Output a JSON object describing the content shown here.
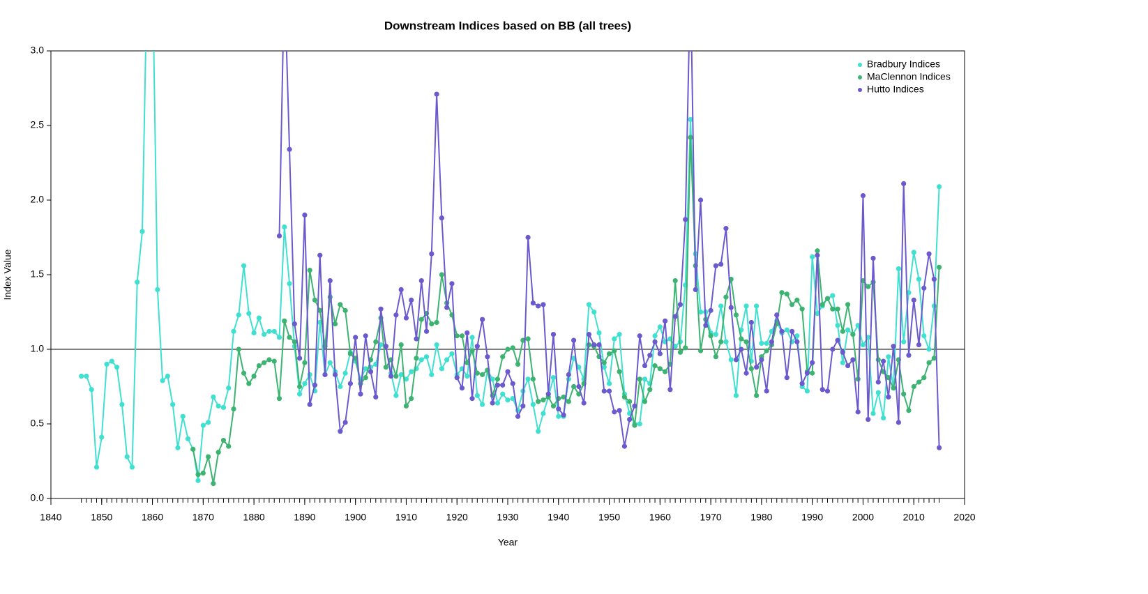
{
  "chart_data": {
    "type": "line",
    "title": "Downstream Indices based on BB (all trees)",
    "x_label": "Year",
    "y_label": "Index Value",
    "x": [
      1846,
      1847,
      1848,
      1849,
      1850,
      1851,
      1852,
      1853,
      1854,
      1855,
      1856,
      1857,
      1858,
      1859,
      1860,
      1861,
      1862,
      1863,
      1864,
      1865,
      1866,
      1867,
      1868,
      1869,
      1870,
      1871,
      1872,
      1873,
      1874,
      1875,
      1876,
      1877,
      1878,
      1879,
      1880,
      1881,
      1882,
      1883,
      1884,
      1885,
      1886,
      1887,
      1888,
      1889,
      1890,
      1891,
      1892,
      1893,
      1894,
      1895,
      1896,
      1897,
      1898,
      1899,
      1900,
      1901,
      1902,
      1903,
      1904,
      1905,
      1906,
      1907,
      1908,
      1909,
      1910,
      1911,
      1912,
      1913,
      1914,
      1915,
      1916,
      1917,
      1918,
      1919,
      1920,
      1921,
      1922,
      1923,
      1924,
      1925,
      1926,
      1927,
      1928,
      1929,
      1930,
      1931,
      1932,
      1933,
      1934,
      1935,
      1936,
      1937,
      1938,
      1939,
      1940,
      1941,
      1942,
      1943,
      1944,
      1945,
      1946,
      1947,
      1948,
      1949,
      1950,
      1951,
      1952,
      1953,
      1954,
      1955,
      1956,
      1957,
      1958,
      1959,
      1960,
      1961,
      1962,
      1963,
      1964,
      1965,
      1966,
      1967,
      1968,
      1969,
      1970,
      1971,
      1972,
      1973,
      1974,
      1975,
      1976,
      1977,
      1978,
      1979,
      1980,
      1981,
      1982,
      1983,
      1984,
      1985,
      1986,
      1987,
      1988,
      1989,
      1990,
      1991,
      1992,
      1993,
      1994,
      1995,
      1996,
      1997,
      1998,
      1999,
      2000,
      2001,
      2002,
      2003,
      2004,
      2005,
      2006,
      2007,
      2008,
      2009,
      2010,
      2011,
      2012,
      2013,
      2014,
      2015
    ],
    "series": [
      {
        "name": "Bradbury Indices",
        "color": "#40e0d0",
        "values": [
          0.82,
          0.82,
          0.73,
          0.21,
          0.41,
          0.9,
          0.92,
          0.88,
          0.63,
          0.28,
          0.21,
          1.45,
          1.79,
          3.6,
          3.6,
          1.4,
          0.79,
          0.82,
          0.63,
          0.34,
          0.55,
          0.4,
          0.33,
          0.12,
          0.49,
          0.51,
          0.68,
          0.62,
          0.61,
          0.74,
          1.12,
          1.23,
          1.56,
          1.24,
          1.11,
          1.21,
          1.1,
          1.12,
          1.12,
          1.08,
          1.82,
          1.44,
          1.02,
          0.7,
          0.77,
          0.83,
          0.72,
          1.18,
          0.83,
          0.91,
          0.85,
          0.75,
          0.84,
          0.98,
          0.92,
          0.8,
          0.87,
          0.88,
          0.9,
          1.03,
          1.02,
          0.84,
          0.69,
          0.83,
          0.8,
          0.85,
          0.87,
          0.93,
          0.95,
          0.83,
          1.03,
          0.87,
          0.93,
          0.97,
          0.83,
          0.87,
          0.82,
          1.08,
          0.69,
          0.63,
          0.86,
          0.8,
          0.64,
          0.7,
          0.66,
          0.67,
          0.59,
          0.72,
          0.8,
          0.63,
          0.45,
          0.57,
          0.68,
          0.81,
          0.55,
          0.55,
          0.8,
          0.94,
          0.88,
          0.8,
          1.3,
          1.25,
          1.11,
          0.88,
          0.77,
          1.07,
          1.1,
          0.7,
          0.57,
          0.5,
          0.5,
          0.8,
          0.77,
          1.09,
          1.15,
          1.05,
          1.07,
          1.02,
          1.05,
          1.43,
          2.54,
          1.64,
          1.25,
          1.25,
          1.11,
          1.1,
          1.29,
          1.05,
          0.93,
          0.69,
          1.13,
          1.29,
          0.92,
          1.29,
          1.04,
          1.04,
          1.12,
          1.19,
          1.11,
          1.13,
          1.05,
          1.09,
          0.75,
          0.72,
          1.62,
          1.24,
          1.29,
          1.34,
          1.36,
          1.16,
          0.91,
          1.13,
          1.1,
          1.16,
          1.03,
          1.08,
          0.57,
          0.71,
          0.54,
          0.95,
          0.74,
          1.54,
          1.05,
          1.38,
          1.65,
          1.47,
          1.09,
          1.0,
          1.29,
          2.09
        ]
      },
      {
        "name": "MaClennon Indices",
        "color": "#3cb371",
        "values": [
          null,
          null,
          null,
          null,
          null,
          null,
          null,
          null,
          null,
          null,
          null,
          null,
          null,
          null,
          null,
          null,
          null,
          null,
          null,
          null,
          null,
          null,
          0.33,
          0.16,
          0.17,
          0.28,
          0.1,
          0.31,
          0.39,
          0.35,
          0.6,
          1.0,
          0.84,
          0.77,
          0.82,
          0.89,
          0.91,
          0.93,
          0.92,
          0.67,
          1.19,
          1.08,
          1.05,
          0.75,
          0.91,
          1.53,
          1.33,
          1.26,
          1.02,
          1.35,
          1.17,
          1.3,
          1.26,
          0.97,
          0.94,
          0.77,
          0.81,
          0.93,
          1.05,
          1.21,
          0.88,
          0.93,
          0.82,
          1.03,
          0.62,
          0.67,
          0.94,
          1.2,
          1.24,
          1.17,
          1.18,
          1.5,
          1.31,
          1.23,
          1.09,
          1.09,
          0.91,
          0.99,
          0.84,
          0.83,
          0.86,
          0.69,
          0.8,
          0.95,
          1.0,
          1.01,
          0.9,
          1.06,
          1.07,
          0.8,
          0.65,
          0.66,
          0.68,
          0.62,
          0.67,
          0.68,
          0.65,
          0.75,
          0.7,
          0.77,
          1.03,
          1.02,
          0.95,
          0.91,
          0.97,
          0.99,
          0.85,
          0.68,
          0.65,
          0.49,
          0.8,
          0.65,
          0.73,
          0.89,
          0.87,
          0.85,
          0.9,
          1.46,
          0.98,
          1.01,
          2.42,
          1.56,
          0.99,
          1.2,
          1.09,
          0.95,
          1.05,
          1.35,
          1.47,
          1.23,
          1.07,
          1.05,
          0.87,
          0.69,
          0.95,
          0.99,
          1.03,
          1.17,
          1.38,
          1.37,
          1.3,
          1.33,
          1.27,
          0.85,
          0.84,
          1.66,
          1.3,
          1.34,
          1.27,
          1.27,
          1.12,
          1.3,
          1.1,
          0.8,
          1.46,
          1.42,
          1.45,
          0.93,
          0.85,
          0.81,
          0.74,
          0.93,
          0.7,
          0.59,
          0.75,
          0.78,
          0.81,
          0.91,
          0.94,
          1.55
        ]
      },
      {
        "name": "Hutto Indices",
        "color": "#6a5acd",
        "values": [
          null,
          null,
          null,
          null,
          null,
          null,
          null,
          null,
          null,
          null,
          null,
          null,
          null,
          null,
          null,
          null,
          null,
          null,
          null,
          null,
          null,
          null,
          null,
          null,
          null,
          null,
          null,
          null,
          null,
          null,
          null,
          null,
          null,
          null,
          null,
          null,
          null,
          null,
          null,
          1.76,
          3.5,
          2.34,
          1.17,
          0.94,
          1.9,
          0.63,
          0.76,
          1.63,
          0.83,
          1.46,
          0.83,
          0.45,
          0.51,
          0.77,
          1.08,
          0.7,
          1.09,
          0.85,
          0.68,
          1.27,
          1.02,
          0.82,
          1.23,
          1.4,
          1.21,
          1.33,
          1.07,
          1.46,
          1.12,
          1.64,
          2.71,
          1.88,
          1.28,
          1.44,
          0.81,
          0.74,
          1.11,
          0.67,
          1.02,
          1.2,
          0.95,
          0.64,
          0.76,
          0.76,
          0.85,
          0.77,
          0.55,
          0.62,
          1.75,
          1.31,
          1.29,
          1.3,
          0.7,
          1.1,
          0.6,
          0.56,
          0.83,
          1.06,
          0.75,
          0.64,
          1.1,
          1.03,
          1.03,
          0.72,
          0.72,
          0.58,
          0.59,
          0.35,
          0.53,
          0.62,
          1.09,
          0.89,
          0.96,
          1.05,
          0.97,
          1.19,
          0.73,
          1.22,
          1.3,
          1.87,
          3.5,
          1.4,
          2.0,
          1.16,
          1.26,
          1.56,
          1.57,
          1.81,
          1.28,
          0.93,
          1.0,
          0.84,
          1.18,
          0.88,
          0.93,
          0.72,
          1.05,
          1.23,
          1.12,
          0.81,
          1.12,
          1.05,
          0.77,
          0.84,
          0.91,
          1.63,
          0.73,
          0.72,
          1.0,
          1.06,
          0.98,
          0.89,
          0.93,
          0.58,
          2.03,
          0.53,
          1.61,
          0.78,
          0.92,
          0.68,
          1.02,
          0.51,
          2.11,
          0.96,
          1.33,
          1.03,
          1.41,
          1.64,
          1.47,
          0.34
        ]
      }
    ],
    "xlim": [
      1840,
      2020
    ],
    "xticks": [
      1840,
      1850,
      1860,
      1870,
      1880,
      1890,
      1900,
      1910,
      1920,
      1930,
      1940,
      1950,
      1960,
      1970,
      1980,
      1990,
      2000,
      2010,
      2020
    ],
    "ylim": [
      0,
      3
    ],
    "yticks": [
      {
        "value": 0,
        "label": "0.0"
      },
      {
        "value": 0.5,
        "label": "0.5"
      },
      {
        "value": 1,
        "label": "1.0"
      },
      {
        "value": 1.5,
        "label": "1.5"
      },
      {
        "value": 2,
        "label": "2.0"
      },
      {
        "value": 2.5,
        "label": "2.5"
      },
      {
        "value": 3,
        "label": "3.0"
      }
    ],
    "reference_line": 1,
    "legend": "top-right",
    "grid": false
  }
}
